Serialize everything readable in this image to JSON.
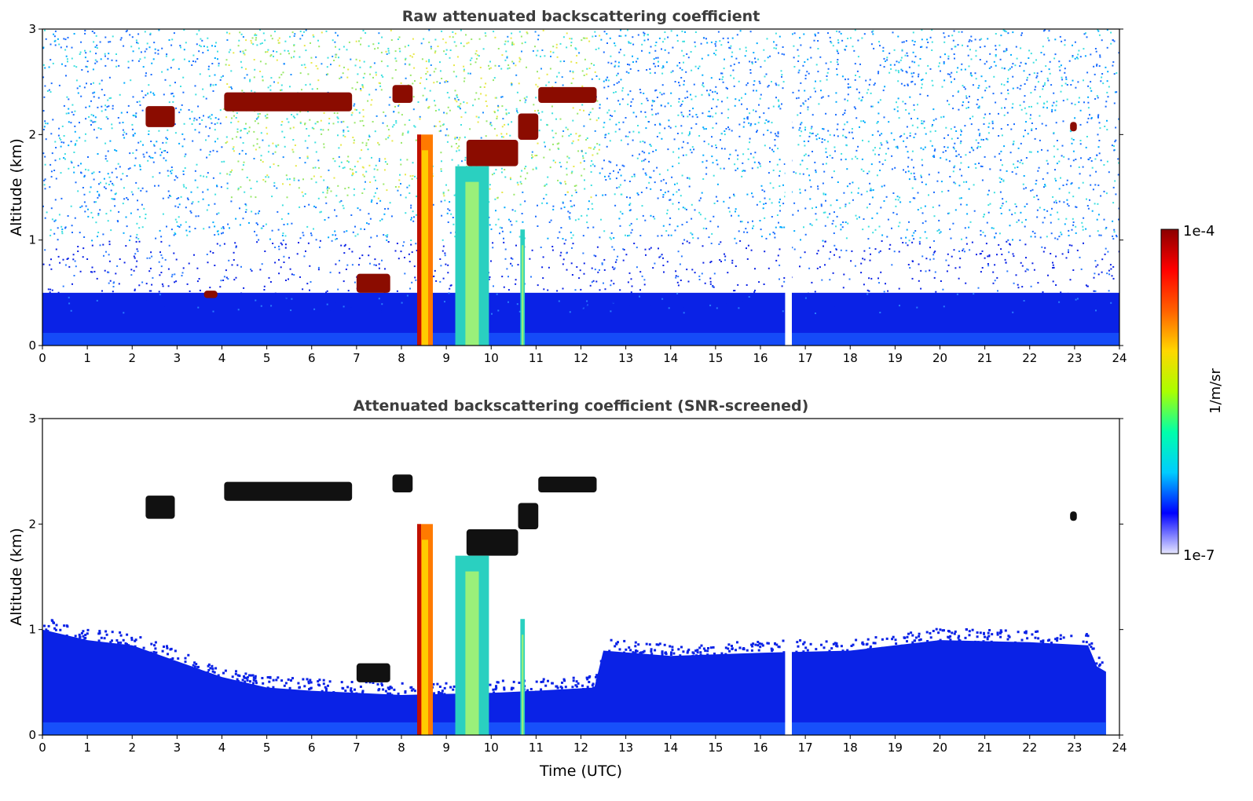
{
  "chart_data": [
    {
      "type": "heatmap",
      "title": "Raw attenuated backscattering coefficient",
      "xlabel": "",
      "ylabel": "Altitude (km)",
      "xlim": [
        0,
        24
      ],
      "ylim": [
        0,
        3
      ],
      "xticks": [
        "0",
        "1",
        "2",
        "3",
        "4",
        "5",
        "6",
        "7",
        "8",
        "9",
        "10",
        "11",
        "12",
        "13",
        "14",
        "15",
        "16",
        "17",
        "18",
        "19",
        "20",
        "21",
        "22",
        "23",
        "24"
      ],
      "yticks": [
        "0",
        "1",
        "2",
        "3"
      ],
      "background_noise": "speckle increasing with altitude; dense blue below ~0.5 km; cyan/green/yellow above ~1.5 km between 4 and 12.4 UTC",
      "data_gap": {
        "x0": 16.55,
        "x1": 16.7
      },
      "features": [
        {
          "kind": "cloud",
          "x0": 2.3,
          "x1": 2.95,
          "y0": 2.07,
          "y1": 2.27,
          "level": "high"
        },
        {
          "kind": "cloud",
          "x0": 4.05,
          "x1": 6.9,
          "y0": 2.22,
          "y1": 2.4,
          "level": "high"
        },
        {
          "kind": "cloud",
          "x0": 7.8,
          "x1": 8.25,
          "y0": 2.3,
          "y1": 2.47,
          "level": "high"
        },
        {
          "kind": "cloud",
          "x0": 9.45,
          "x1": 10.6,
          "y0": 1.7,
          "y1": 1.95,
          "level": "high"
        },
        {
          "kind": "cloud",
          "x0": 10.6,
          "x1": 11.05,
          "y0": 1.95,
          "y1": 2.2,
          "level": "high"
        },
        {
          "kind": "cloud",
          "x0": 11.05,
          "x1": 12.35,
          "y0": 2.3,
          "y1": 2.45,
          "level": "high"
        },
        {
          "kind": "cloud",
          "x0": 22.9,
          "x1": 23.05,
          "y0": 2.03,
          "y1": 2.12,
          "level": "high"
        },
        {
          "kind": "cloud",
          "x0": 7.0,
          "x1": 7.75,
          "y0": 0.5,
          "y1": 0.68,
          "level": "high"
        },
        {
          "kind": "cloud",
          "x0": 3.6,
          "x1": 3.9,
          "y0": 0.45,
          "y1": 0.52,
          "level": "high"
        },
        {
          "kind": "precip",
          "x0": 8.35,
          "x1": 8.7,
          "y0": 0.0,
          "y1": 2.0,
          "level": "high"
        },
        {
          "kind": "precip",
          "x0": 9.2,
          "x1": 9.95,
          "y0": 0.0,
          "y1": 1.7,
          "level": "mid"
        },
        {
          "kind": "precip",
          "x0": 10.65,
          "x1": 10.75,
          "y0": 0.0,
          "y1": 1.1,
          "level": "mid"
        }
      ]
    },
    {
      "type": "heatmap",
      "title": "Attenuated backscattering coefficient (SNR-screened)",
      "xlabel": "Time (UTC)",
      "ylabel": "Altitude (km)",
      "xlim": [
        0,
        24
      ],
      "ylim": [
        0,
        3
      ],
      "xticks": [
        "0",
        "1",
        "2",
        "3",
        "4",
        "5",
        "6",
        "7",
        "8",
        "9",
        "10",
        "11",
        "12",
        "13",
        "14",
        "15",
        "16",
        "17",
        "18",
        "19",
        "20",
        "21",
        "22",
        "23",
        "24"
      ],
      "yticks": [
        "0",
        "1",
        "2",
        "3"
      ],
      "screened_boundary": [
        {
          "x": 0.0,
          "y": 1.0
        },
        {
          "x": 1.0,
          "y": 0.9
        },
        {
          "x": 2.0,
          "y": 0.85
        },
        {
          "x": 3.0,
          "y": 0.7
        },
        {
          "x": 4.0,
          "y": 0.55
        },
        {
          "x": 5.0,
          "y": 0.45
        },
        {
          "x": 6.0,
          "y": 0.42
        },
        {
          "x": 7.0,
          "y": 0.4
        },
        {
          "x": 8.0,
          "y": 0.38
        },
        {
          "x": 10.0,
          "y": 0.4
        },
        {
          "x": 11.0,
          "y": 0.42
        },
        {
          "x": 12.3,
          "y": 0.45
        },
        {
          "x": 12.5,
          "y": 0.8
        },
        {
          "x": 14.0,
          "y": 0.75
        },
        {
          "x": 16.0,
          "y": 0.78
        },
        {
          "x": 18.0,
          "y": 0.8
        },
        {
          "x": 19.0,
          "y": 0.85
        },
        {
          "x": 20.0,
          "y": 0.9
        },
        {
          "x": 22.0,
          "y": 0.88
        },
        {
          "x": 23.3,
          "y": 0.85
        },
        {
          "x": 23.5,
          "y": 0.65
        },
        {
          "x": 23.7,
          "y": 0.6
        }
      ],
      "features": [
        {
          "kind": "cloud",
          "x0": 2.3,
          "x1": 2.95,
          "y0": 2.05,
          "y1": 2.27,
          "level": "saturated"
        },
        {
          "kind": "cloud",
          "x0": 4.05,
          "x1": 6.9,
          "y0": 2.22,
          "y1": 2.4,
          "level": "saturated"
        },
        {
          "kind": "cloud",
          "x0": 7.8,
          "x1": 8.25,
          "y0": 2.3,
          "y1": 2.47,
          "level": "saturated"
        },
        {
          "kind": "cloud",
          "x0": 9.45,
          "x1": 10.6,
          "y0": 1.7,
          "y1": 1.95,
          "level": "saturated"
        },
        {
          "kind": "cloud",
          "x0": 10.6,
          "x1": 11.05,
          "y0": 1.95,
          "y1": 2.2,
          "level": "saturated"
        },
        {
          "kind": "cloud",
          "x0": 11.05,
          "x1": 12.35,
          "y0": 2.3,
          "y1": 2.45,
          "level": "saturated"
        },
        {
          "kind": "cloud",
          "x0": 22.9,
          "x1": 23.05,
          "y0": 2.03,
          "y1": 2.12,
          "level": "saturated"
        },
        {
          "kind": "cloud",
          "x0": 7.0,
          "x1": 7.75,
          "y0": 0.5,
          "y1": 0.68,
          "level": "saturated"
        },
        {
          "kind": "precip",
          "x0": 8.35,
          "x1": 8.7,
          "y0": 0.0,
          "y1": 2.0,
          "level": "high"
        },
        {
          "kind": "precip",
          "x0": 9.2,
          "x1": 9.95,
          "y0": 0.0,
          "y1": 1.7,
          "level": "mid"
        },
        {
          "kind": "precip",
          "x0": 10.65,
          "x1": 10.75,
          "y0": 0.0,
          "y1": 1.1,
          "level": "mid"
        }
      ]
    }
  ],
  "colorbar": {
    "label": "1/m/sr",
    "max_label": "1e-4",
    "min_label": "1e-7",
    "colormap": "jet",
    "colors": [
      "#e6e6ff",
      "#0000ff",
      "#00ccff",
      "#00ffaa",
      "#aaff00",
      "#ffd700",
      "#ff6000",
      "#ff0000",
      "#8b0000"
    ]
  },
  "colors": {
    "low": "#0a22e6",
    "mid": "#12b4ff",
    "speck": "#3fe0e0",
    "yellow": "#e8e84a",
    "high": "#8b0c00",
    "saturated": "#111111"
  }
}
